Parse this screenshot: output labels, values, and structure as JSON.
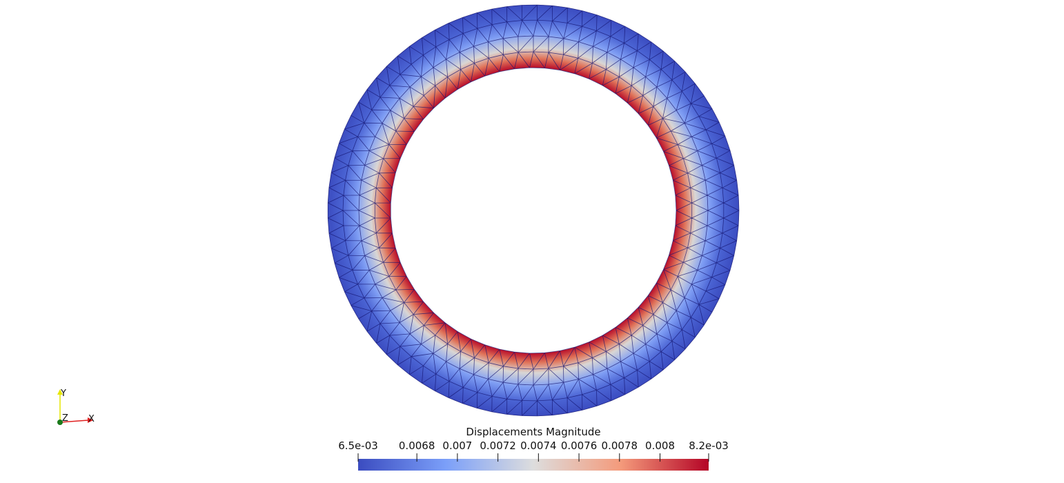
{
  "colorbar": {
    "title": "Displacements Magnitude",
    "range": [
      {
        "value": 0.00651,
        "label": "6.5e-03"
      },
      {
        "value": 0.00824,
        "label": "8.2e-03"
      }
    ],
    "ticks": [
      0.0068,
      0.007,
      0.0072,
      0.0074,
      0.0076,
      0.0078,
      0.008
    ]
  },
  "orientation_axes": {
    "x": "X",
    "y": "Y",
    "z": "Z"
  }
}
